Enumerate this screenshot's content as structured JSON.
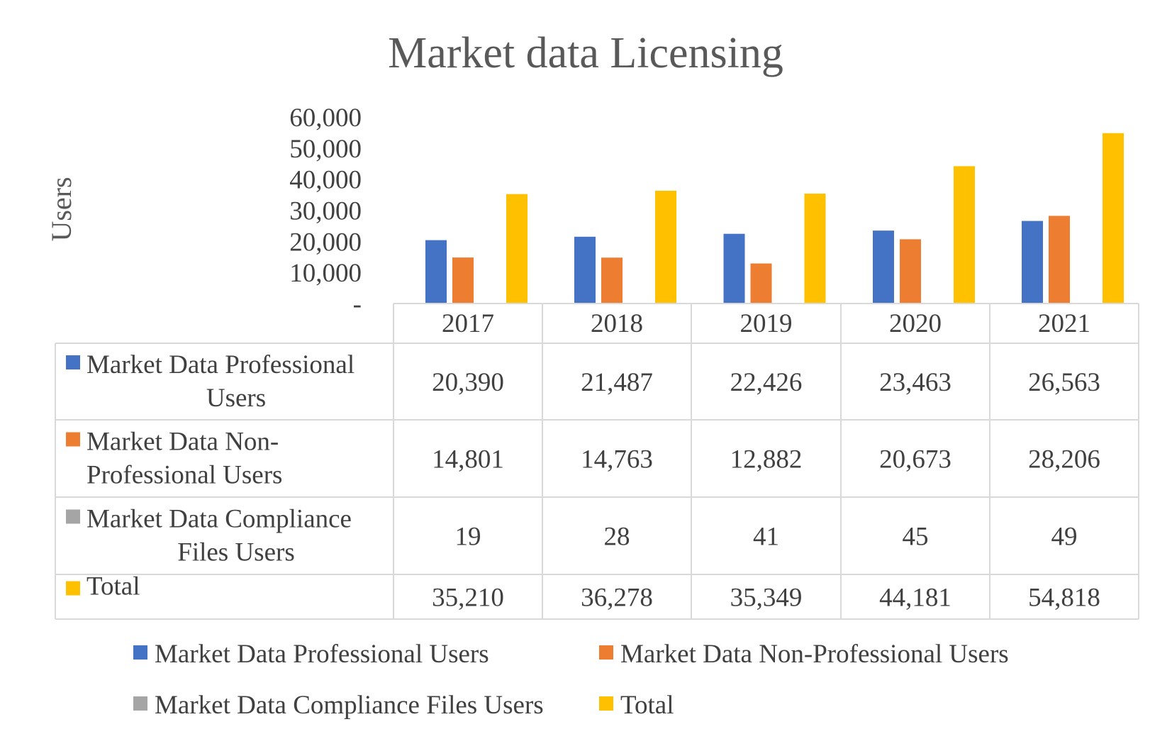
{
  "chart_data": {
    "type": "bar",
    "title": "Market data Licensing",
    "ylabel": "Users",
    "xlabel": "",
    "ylim": [
      0,
      60000
    ],
    "y_ticks": [
      "-",
      "10,000",
      "20,000",
      "30,000",
      "40,000",
      "50,000",
      "60,000"
    ],
    "categories": [
      "2017",
      "2018",
      "2019",
      "2020",
      "2021"
    ],
    "series": [
      {
        "name": "Market Data Professional Users",
        "row_label_lines": [
          "Market Data Professional",
          "Users"
        ],
        "color": "#4472C4",
        "values": [
          20390,
          21487,
          22426,
          23463,
          26563
        ],
        "labels": [
          "20,390",
          "21,487",
          "22,426",
          "23,463",
          "26,563"
        ]
      },
      {
        "name": "Market Data Non-Professional Users",
        "row_label_lines": [
          "Market Data Non-",
          "Professional Users"
        ],
        "color": "#ED7D31",
        "values": [
          14801,
          14763,
          12882,
          20673,
          28206
        ],
        "labels": [
          "14,801",
          "14,763",
          "12,882",
          "20,673",
          "28,206"
        ]
      },
      {
        "name": "Market Data Compliance Files Users",
        "row_label_lines": [
          "Market Data Compliance",
          "Files Users"
        ],
        "color": "#A5A5A5",
        "values": [
          19,
          28,
          41,
          45,
          49
        ],
        "labels": [
          "19",
          "28",
          "41",
          "45",
          "49"
        ]
      },
      {
        "name": "Total",
        "row_label_lines": [
          "Total"
        ],
        "color": "#FFC000",
        "values": [
          35210,
          36278,
          35349,
          44181,
          54818
        ],
        "labels": [
          "35,210",
          "36,278",
          "35,349",
          "44,181",
          "54,818"
        ]
      }
    ],
    "grid": false,
    "data_table": true,
    "legend_position": "bottom"
  }
}
